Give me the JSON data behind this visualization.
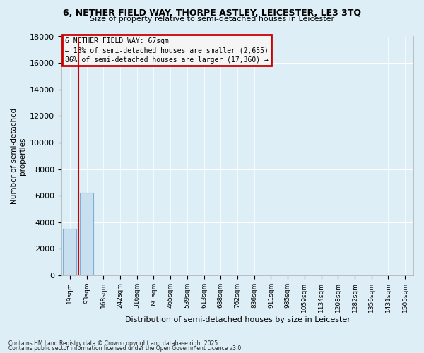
{
  "title": "6, NETHER FIELD WAY, THORPE ASTLEY, LEICESTER, LE3 3TQ",
  "subtitle": "Size of property relative to semi-detached houses in Leicester",
  "xlabel": "Distribution of semi-detached houses by size in Leicester",
  "ylabel": "Number of semi-detached\nproperties",
  "categories": [
    "19sqm",
    "93sqm",
    "168sqm",
    "242sqm",
    "316sqm",
    "391sqm",
    "465sqm",
    "539sqm",
    "613sqm",
    "688sqm",
    "762sqm",
    "836sqm",
    "911sqm",
    "985sqm",
    "1059sqm",
    "1134sqm",
    "1208sqm",
    "1282sqm",
    "1356sqm",
    "1431sqm",
    "1505sqm"
  ],
  "values": [
    3500,
    6200,
    0,
    0,
    0,
    0,
    0,
    0,
    0,
    0,
    0,
    0,
    0,
    0,
    0,
    0,
    0,
    0,
    0,
    0,
    0
  ],
  "bar_color": "#c8dff0",
  "bar_edge_color": "#7bafd4",
  "ylim": [
    0,
    18000
  ],
  "yticks": [
    0,
    2000,
    4000,
    6000,
    8000,
    10000,
    12000,
    14000,
    16000,
    18000
  ],
  "red_line_x": 0.5,
  "annotation_title": "6 NETHER FIELD WAY: 67sqm",
  "annotation_line1": "← 13% of semi-detached houses are smaller (2,655)",
  "annotation_line2": "86% of semi-detached houses are larger (17,360) →",
  "annotation_bg_color": "#f5f5f5",
  "annotation_border_color": "#cc0000",
  "footer1": "Contains HM Land Registry data © Crown copyright and database right 2025.",
  "footer2": "Contains public sector information licensed under the Open Government Licence v3.0.",
  "bg_color": "#ddeef6",
  "plot_bg_color": "#ddeef6",
  "grid_color": "#ffffff",
  "title_fontsize": 9,
  "subtitle_fontsize": 8
}
